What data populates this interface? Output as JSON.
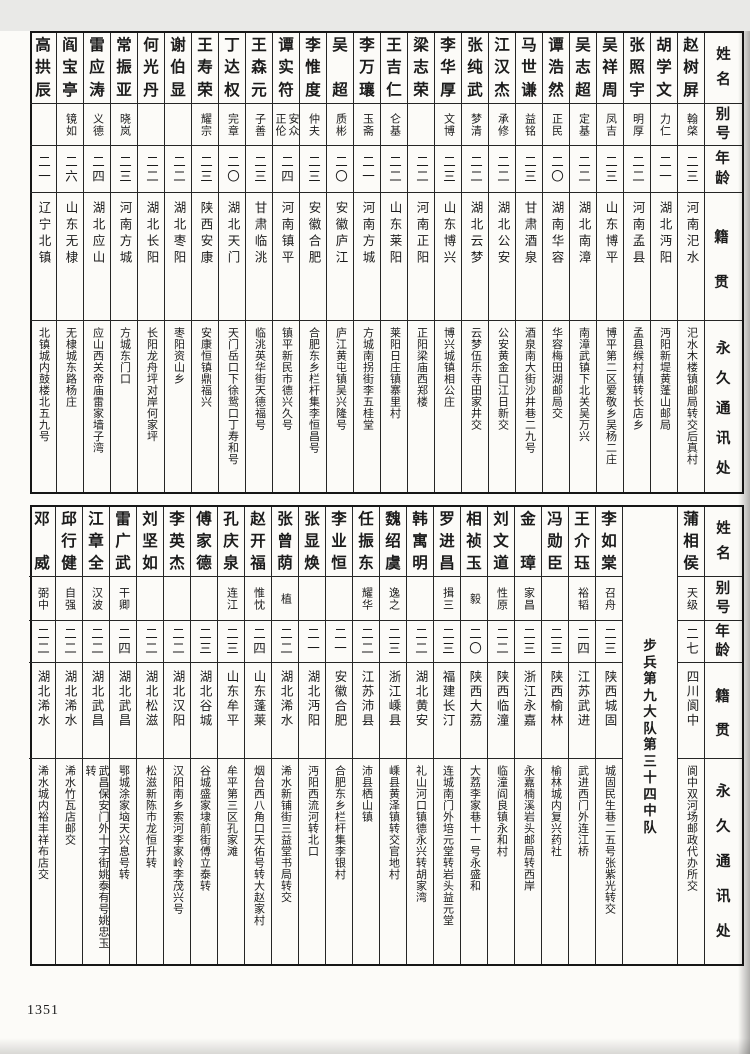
{
  "page": {
    "number": "1351"
  },
  "headers": {
    "name": "姓名",
    "alias": "别号",
    "age": "年龄",
    "native": "籍贯",
    "address": "永久通讯处"
  },
  "tables": [
    {
      "id": "top",
      "entries": [
        {
          "name": "赵树屏",
          "alias": "翰棨",
          "age": "二三",
          "native": "河南汜水",
          "address": "汜水木楼镇邮局转交后真村"
        },
        {
          "name": "胡学文",
          "alias": "力仁",
          "age": "二一",
          "native": "湖北沔阳",
          "address": "沔阳新堤黄蓬山邮局"
        },
        {
          "name": "张照宇",
          "alias": "明厚",
          "age": "二二",
          "native": "河南孟县",
          "address": "孟县缑村镇转长店乡"
        },
        {
          "name": "吴祥周",
          "alias": "凤吉",
          "age": "二三",
          "native": "山东博平",
          "address": "博平第二区爱敬乡吴杨二庄"
        },
        {
          "name": "吴志超",
          "alias": "定基",
          "age": "二二",
          "native": "湖北南漳",
          "address": "南漳武镇下北关吴万兴"
        },
        {
          "name": "谭浩然",
          "alias": "正民",
          "age": "二〇",
          "native": "湖南华容",
          "address": "华容梅田湖邮局交"
        },
        {
          "name": "马世谦",
          "alias": "益铭",
          "age": "二三",
          "native": "甘肃酒泉",
          "address": "酒泉南大街沙井巷二九号"
        },
        {
          "name": "江汉杰",
          "alias": "承修",
          "age": "二二",
          "native": "湖北公安",
          "address": "公安黄金口江日新交"
        },
        {
          "name": "张纯武",
          "alias": "梦清",
          "age": "二二",
          "native": "湖北云梦",
          "address": "云梦伍乐寺田家井交"
        },
        {
          "name": "李华厚",
          "alias": "文博",
          "age": "二三",
          "native": "山东博兴",
          "address": "博兴城镇相公庄"
        },
        {
          "name": "梁志荣",
          "alias": "",
          "age": "二二",
          "native": "河南正阳",
          "address": "正阳梁庙西郑楼"
        },
        {
          "name": "王吉仁",
          "alias": "仑基",
          "age": "二二",
          "native": "山东莱阳",
          "address": "莱阳日庄镇寨里村"
        },
        {
          "name": "李万瓖",
          "alias": "玉斋",
          "age": "二一",
          "native": "河南方城",
          "address": "方城南拐街李五桂堂"
        },
        {
          "name": "吴超",
          "alias": "质彬",
          "age": "二〇",
          "native": "安徽庐江",
          "address": "庐江黄屯镇吴兴隆号"
        },
        {
          "name": "李惟度",
          "alias": "仲夫",
          "age": "二三",
          "native": "安徽合肥",
          "address": "合肥东乡栏杆集李恒昌号"
        },
        {
          "name": "谭实符",
          "alias": "安众\n正伦",
          "age": "二四",
          "native": "河南镇平",
          "address": "镇平新民市德兴久号"
        },
        {
          "name": "王森元",
          "alias": "子善",
          "age": "二三",
          "native": "甘肃临洮",
          "address": "临洮英华街天德福号"
        },
        {
          "name": "丁达权",
          "alias": "完章",
          "age": "二〇",
          "native": "湖北天门",
          "address": "天门岳口下徐鸳口丁寿和号"
        },
        {
          "name": "王寿荣",
          "alias": "耀宗",
          "age": "二三",
          "native": "陕西安康",
          "address": "安康恒镇鼎福兴"
        },
        {
          "name": "谢伯显",
          "alias": "",
          "age": "二二",
          "native": "湖北枣阳",
          "address": "枣阳资山乡"
        },
        {
          "name": "何光丹",
          "alias": "",
          "age": "二二",
          "native": "湖北长阳",
          "address": "长阳龙舟坪对岸何家坪"
        },
        {
          "name": "常振亚",
          "alias": "晓岚",
          "age": "二三",
          "native": "河南方城",
          "address": "方城东门口"
        },
        {
          "name": "雷应涛",
          "alias": "义德",
          "age": "二四",
          "native": "湖北应山",
          "address": "应山西关帝庙雷家墙子湾"
        },
        {
          "name": "阎宝亭",
          "alias": "镜如",
          "age": "二六",
          "native": "山东无棣",
          "address": "无棣城东路杨庄"
        },
        {
          "name": "高拱辰",
          "alias": "",
          "age": "二一",
          "native": "辽宁北镇",
          "address": "北镇城内鼓楼北五九号"
        }
      ]
    },
    {
      "id": "bottom",
      "entries": [
        {
          "name": "蒲相侯",
          "alias": "天级",
          "age": "二七",
          "native": "四川阆中",
          "address": "阆中双河场邮政代办所交"
        },
        {
          "type": "unit",
          "text": "步兵第九大队第三十四中队"
        },
        {
          "name": "李如棠",
          "alias": "召舟",
          "age": "二三",
          "native": "陕西城固",
          "address": "城固民生巷二五号张紫光转交"
        },
        {
          "name": "王介珏",
          "alias": "裕韬",
          "age": "二四",
          "native": "江苏武进",
          "address": "武进西门外连江桥"
        },
        {
          "name": "冯勋臣",
          "alias": "",
          "age": "二三",
          "native": "陕西榆林",
          "address": "榆林城内复兴药社"
        },
        {
          "name": "金璋",
          "alias": "家昌",
          "age": "二三",
          "native": "浙江永嘉",
          "address": "永嘉楠溪岩头邮局转西岸"
        },
        {
          "name": "刘文道",
          "alias": "性原",
          "age": "二二",
          "native": "陕西临潼",
          "address": "临潼阎良镇永和村"
        },
        {
          "name": "相祯玉",
          "alias": "毅",
          "age": "二〇",
          "native": "陕西大荔",
          "address": "大荔李家巷十一号永盛和"
        },
        {
          "name": "罗进昌",
          "alias": "揖三",
          "age": "二三",
          "native": "福建长汀",
          "address": "连城南门外培元堂转岩头益元堂"
        },
        {
          "name": "韩寓明",
          "alias": "",
          "age": "二二",
          "native": "湖北黄安",
          "address": "礼山河口镇德永兴转胡家湾"
        },
        {
          "name": "魏绍虞",
          "alias": "逸之",
          "age": "二三",
          "native": "浙江嵊县",
          "address": "嵊县黄泽镇转交官地村"
        },
        {
          "name": "任振东",
          "alias": "耀华",
          "age": "二二",
          "native": "江苏沛县",
          "address": "沛县栖山镇"
        },
        {
          "name": "李业恒",
          "alias": "",
          "age": "二一",
          "native": "安徽合肥",
          "address": "合肥东乡栏杆集李银村"
        },
        {
          "name": "张显焕",
          "alias": "",
          "age": "二一",
          "native": "湖北沔阳",
          "address": "沔阳西流河转北口"
        },
        {
          "name": "张曾荫",
          "alias": "植",
          "age": "二二",
          "native": "湖北浠水",
          "address": "浠水新铺街三益堂书局转交"
        },
        {
          "name": "赵开福",
          "alias": "惟忱",
          "age": "二四",
          "native": "山东蓬莱",
          "address": "烟台西八角口天佑号转大赵家村"
        },
        {
          "name": "孔庆泉",
          "alias": "连江",
          "age": "二三",
          "native": "山东牟平",
          "address": "牟平第三区孔家滩"
        },
        {
          "name": "傅家德",
          "alias": "",
          "age": "二三",
          "native": "湖北谷城",
          "address": "谷城盛家埭前街傅立泰转"
        },
        {
          "name": "李英杰",
          "alias": "",
          "age": "二二",
          "native": "湖北汉阳",
          "address": "汉阳南乡索河李家岭李茂兴号"
        },
        {
          "name": "刘坚如",
          "alias": "",
          "age": "二二",
          "native": "湖北松滋",
          "address": "松滋新陈市龙恒升转"
        },
        {
          "name": "雷广武",
          "alias": "干卿",
          "age": "二四",
          "native": "湖北武昌",
          "address": "鄂城涂家垴天兴息号转"
        },
        {
          "name": "江章全",
          "alias": "汉波",
          "age": "二二",
          "native": "湖北武昌",
          "address": "武昌保安门外十字街姚泰有号姚忠玉转"
        },
        {
          "name": "邱行健",
          "alias": "自强",
          "age": "二二",
          "native": "湖北浠水",
          "address": "浠水竹瓦店邮交"
        },
        {
          "name": "邓威",
          "alias": "弼中",
          "age": "二二",
          "native": "湖北浠水",
          "address": "浠水城内裕丰祥布店交"
        }
      ]
    }
  ]
}
